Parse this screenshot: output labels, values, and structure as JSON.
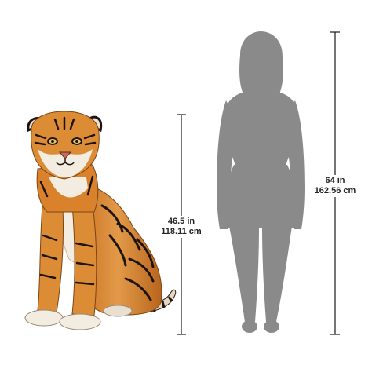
{
  "tiger_dimension": {
    "imperial": "46.5 in",
    "metric": "118.11 cm"
  },
  "person_dimension": {
    "imperial": "64 in",
    "metric": "162.56 cm"
  },
  "colors": {
    "silhouette": "#8a8a8a",
    "measure_line": "#1a1a1a",
    "tiger_orange": "#d9822b",
    "tiger_stripe": "#1e140e",
    "tiger_white": "#f3ece1"
  }
}
